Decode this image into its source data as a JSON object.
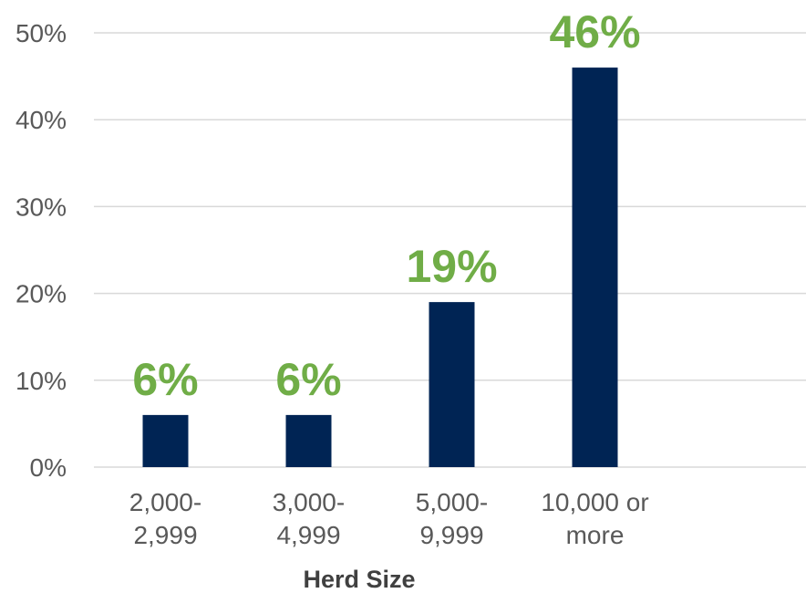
{
  "chart_data": {
    "type": "bar",
    "categories": [
      [
        "2,000-",
        "2,999"
      ],
      [
        "3,000-",
        "4,999"
      ],
      [
        "5,000-",
        "9,999"
      ],
      [
        "10,000 or",
        "more"
      ]
    ],
    "values": [
      6,
      6,
      19,
      46
    ],
    "data_labels": [
      "6%",
      "6%",
      "19%",
      "46%"
    ],
    "title": "",
    "xlabel": "Herd Size",
    "ylabel": "",
    "ylim": [
      0,
      50
    ],
    "yticks": [
      0,
      10,
      20,
      30,
      40,
      50
    ],
    "ytick_labels": [
      "0%",
      "10%",
      "20%",
      "30%",
      "40%",
      "50%"
    ],
    "grid": true,
    "legend": "none",
    "colors": {
      "bar": "#002454",
      "data_label": "#70AD47",
      "grid": "#d9d9d9"
    }
  }
}
